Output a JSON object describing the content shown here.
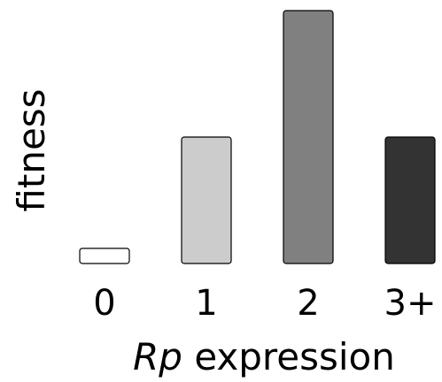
{
  "chart_data": {
    "type": "bar",
    "categories": [
      "0",
      "1",
      "2",
      "3+"
    ],
    "values": [
      0.06,
      0.5,
      1.0,
      0.5
    ],
    "colors": [
      "#ffffff",
      "#cccccc",
      "#808080",
      "#333333"
    ],
    "title": "",
    "xlabel": {
      "italic": "Rp",
      "rest": " expression"
    },
    "ylabel": "fitness",
    "ylim": [
      0,
      1
    ],
    "grid": false,
    "legend": "none"
  }
}
